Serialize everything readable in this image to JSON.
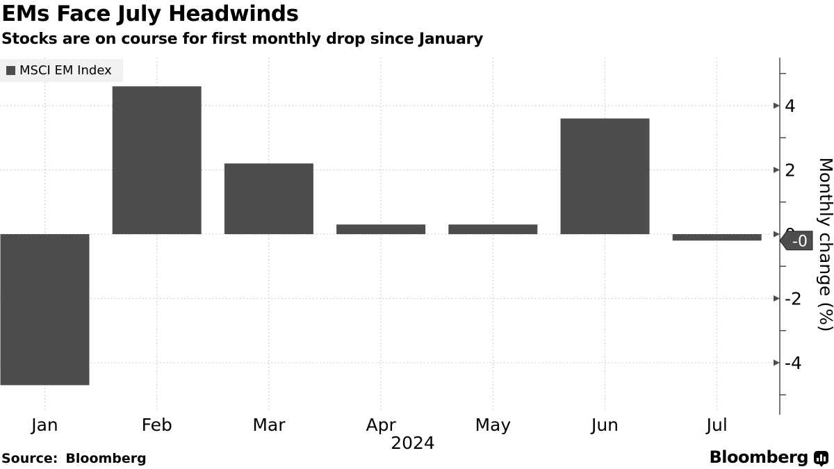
{
  "header": {
    "title": "EMs Face July Headwinds",
    "subtitle": "Stocks are on course for first monthly drop since January"
  },
  "legend": {
    "label": "MSCI EM Index",
    "swatch_color": "#4d4d4d"
  },
  "chart_data": {
    "type": "bar",
    "series_name": "MSCI EM Index",
    "categories": [
      "Jan",
      "Feb",
      "Mar",
      "Apr",
      "May",
      "Jun",
      "Jul"
    ],
    "values": [
      -4.7,
      4.6,
      2.2,
      0.3,
      0.3,
      3.6,
      -0.2
    ],
    "x_axis_year": "2024",
    "ylabel": "Monthly change (%)",
    "y_ticks_major": [
      4,
      2,
      0,
      -2,
      -4
    ],
    "y_ticks_minor": [
      5,
      3,
      1,
      -1,
      -3,
      -5
    ],
    "ylim": [
      -5.5,
      5.5
    ],
    "grid": true,
    "axis_side": "right",
    "legend_position": "top-left",
    "bar_color": "#4d4d4d",
    "last_value_label": "-0"
  },
  "colors": {
    "bar": "#4d4d4d",
    "grid": "#c9c9c9",
    "axis": "#4d4d4d",
    "badge_bg": "#4d4d4d",
    "badge_border": "#222222",
    "badge_text": "#ffffff",
    "legend_bg": "#f1f1f0"
  },
  "footer": {
    "source_label": "Source:",
    "source_value": "Bloomberg",
    "brand": "Bloomberg",
    "brand_icon": "bloomberg-chart-bubble-icon"
  }
}
